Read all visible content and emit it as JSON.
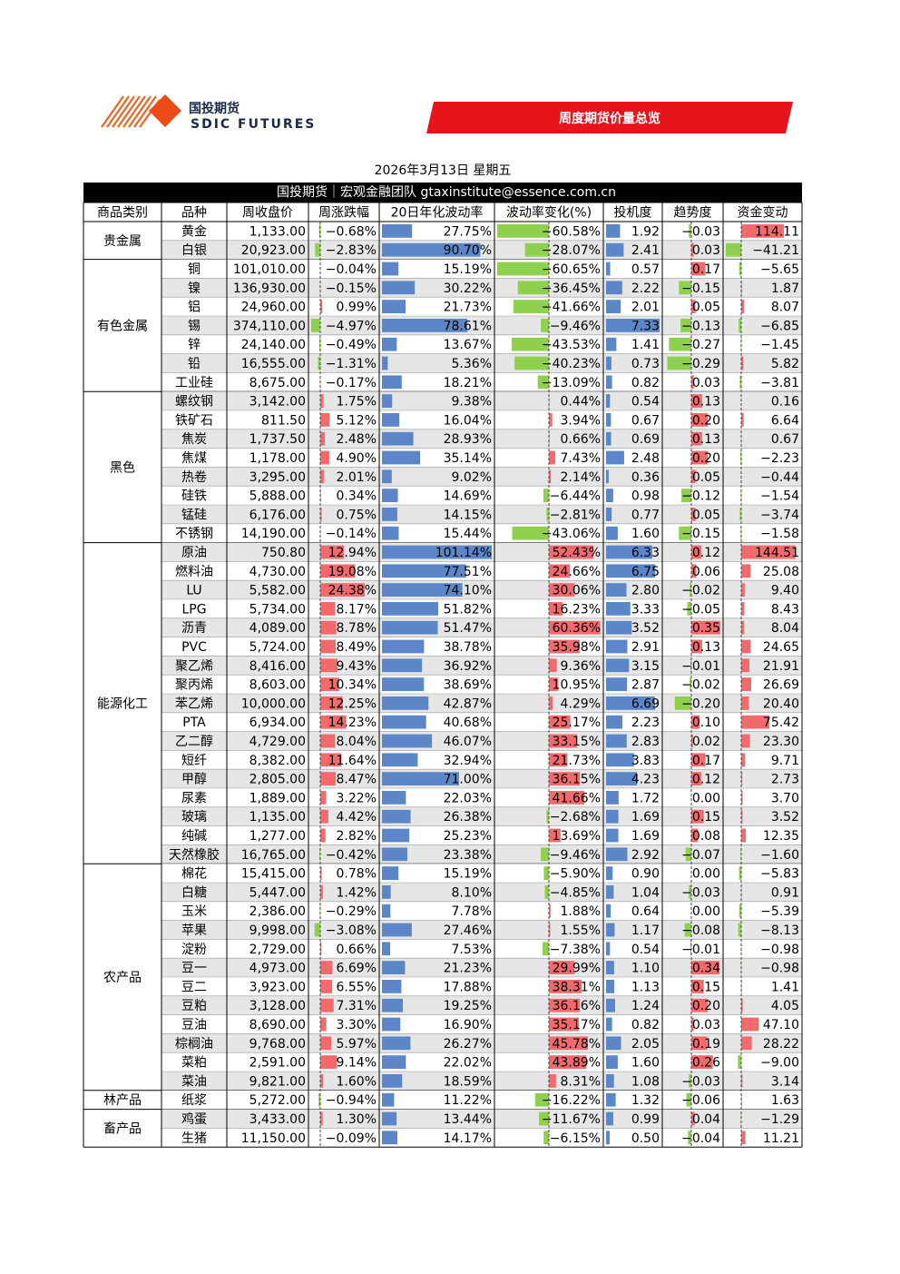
{
  "header": {
    "logo_cn": "国投期货",
    "logo_en": "SDIC FUTURES",
    "banner": "周度期货价量总览"
  },
  "date": "2026年3月13日 星期五",
  "team": "国投期货｜宏观金融团队 gtaxinstitute@essence.com.cn",
  "table": {
    "columns": [
      "商品类别",
      "品种",
      "周收盘价",
      "周涨跌幅",
      "20日年化波动率",
      "波动率变化(%)",
      "投机度",
      "趋势度",
      "资金变动"
    ],
    "groups": [
      {
        "name": "贵金属",
        "rows": [
          [
            "黄金",
            "1,133.00",
            "−0.68%",
            "27.75%",
            "−60.58%",
            "1.92",
            "−0.03",
            "114.11"
          ],
          [
            "白银",
            "20,923.00",
            "−2.83%",
            "90.70%",
            "−28.07%",
            "2.41",
            "0.03",
            "−41.21"
          ]
        ]
      },
      {
        "name": "有色金属",
        "rows": [
          [
            "铜",
            "101,010.00",
            "−0.04%",
            "15.19%",
            "−60.65%",
            "0.57",
            "0.17",
            "−5.65"
          ],
          [
            "镍",
            "136,930.00",
            "−0.15%",
            "30.22%",
            "−36.45%",
            "2.22",
            "−0.15",
            "1.87"
          ],
          [
            "铝",
            "24,960.00",
            "0.99%",
            "21.73%",
            "−41.66%",
            "2.01",
            "0.05",
            "8.07"
          ],
          [
            "锡",
            "374,110.00",
            "−4.97%",
            "78.61%",
            "−9.46%",
            "7.33",
            "−0.13",
            "−6.85"
          ],
          [
            "锌",
            "24,140.00",
            "−0.49%",
            "13.67%",
            "−43.53%",
            "1.41",
            "−0.27",
            "−1.45"
          ],
          [
            "铅",
            "16,555.00",
            "−1.31%",
            "5.36%",
            "−40.23%",
            "0.73",
            "−0.29",
            "5.82"
          ],
          [
            "工业硅",
            "8,675.00",
            "−0.17%",
            "18.21%",
            "−13.09%",
            "0.82",
            "0.03",
            "−3.81"
          ]
        ]
      },
      {
        "name": "黑色",
        "rows": [
          [
            "螺纹钢",
            "3,142.00",
            "1.75%",
            "9.38%",
            "0.44%",
            "0.54",
            "0.13",
            "0.16"
          ],
          [
            "铁矿石",
            "811.50",
            "5.12%",
            "16.04%",
            "3.94%",
            "0.67",
            "0.20",
            "6.64"
          ],
          [
            "焦炭",
            "1,737.50",
            "2.48%",
            "28.93%",
            "0.66%",
            "0.69",
            "0.13",
            "0.67"
          ],
          [
            "焦煤",
            "1,178.00",
            "4.90%",
            "35.14%",
            "7.43%",
            "2.48",
            "0.20",
            "−2.23"
          ],
          [
            "热卷",
            "3,295.00",
            "2.01%",
            "9.02%",
            "2.14%",
            "0.36",
            "0.05",
            "−0.44"
          ],
          [
            "硅铁",
            "5,888.00",
            "0.34%",
            "14.69%",
            "−6.44%",
            "0.98",
            "−0.12",
            "−1.54"
          ],
          [
            "锰硅",
            "6,176.00",
            "0.75%",
            "14.15%",
            "−2.81%",
            "0.77",
            "0.05",
            "−3.74"
          ],
          [
            "不锈钢",
            "14,190.00",
            "−0.14%",
            "15.44%",
            "−43.06%",
            "1.60",
            "−0.15",
            "−1.58"
          ]
        ]
      },
      {
        "name": "能源化工",
        "rows": [
          [
            "原油",
            "750.80",
            "12.94%",
            "101.14%",
            "52.43%",
            "6.33",
            "0.12",
            "144.51"
          ],
          [
            "燃料油",
            "4,730.00",
            "19.08%",
            "77.51%",
            "24.66%",
            "6.75",
            "0.06",
            "25.08"
          ],
          [
            "LU",
            "5,582.00",
            "24.38%",
            "74.10%",
            "30.06%",
            "2.80",
            "−0.02",
            "9.40"
          ],
          [
            "LPG",
            "5,734.00",
            "8.17%",
            "51.82%",
            "16.23%",
            "3.33",
            "−0.05",
            "8.43"
          ],
          [
            "沥青",
            "4,089.00",
            "8.78%",
            "51.47%",
            "60.36%",
            "3.52",
            "0.35",
            "8.04"
          ],
          [
            "PVC",
            "5,724.00",
            "8.49%",
            "38.78%",
            "35.98%",
            "2.91",
            "0.13",
            "24.65"
          ],
          [
            "聚乙烯",
            "8,416.00",
            "9.43%",
            "36.92%",
            "9.36%",
            "3.15",
            "−0.01",
            "21.91"
          ],
          [
            "聚丙烯",
            "8,603.00",
            "10.34%",
            "38.69%",
            "10.95%",
            "2.87",
            "−0.02",
            "26.69"
          ],
          [
            "苯乙烯",
            "10,000.00",
            "12.25%",
            "42.87%",
            "4.29%",
            "6.69",
            "−0.20",
            "20.40"
          ],
          [
            "PTA",
            "6,934.00",
            "14.23%",
            "40.68%",
            "25.17%",
            "2.23",
            "0.10",
            "75.42"
          ],
          [
            "乙二醇",
            "4,729.00",
            "8.04%",
            "46.07%",
            "33.15%",
            "2.83",
            "0.02",
            "23.30"
          ],
          [
            "短纤",
            "8,382.00",
            "11.64%",
            "32.94%",
            "21.73%",
            "3.83",
            "0.17",
            "9.71"
          ],
          [
            "甲醇",
            "2,805.00",
            "8.47%",
            "71.00%",
            "36.15%",
            "4.23",
            "0.12",
            "2.73"
          ],
          [
            "尿素",
            "1,889.00",
            "3.22%",
            "22.03%",
            "41.66%",
            "1.72",
            "0.00",
            "3.70"
          ],
          [
            "玻璃",
            "1,135.00",
            "4.42%",
            "26.38%",
            "−2.68%",
            "1.69",
            "0.15",
            "3.52"
          ],
          [
            "纯碱",
            "1,277.00",
            "2.82%",
            "25.23%",
            "13.69%",
            "1.69",
            "0.08",
            "12.35"
          ],
          [
            "天然橡胶",
            "16,765.00",
            "−0.42%",
            "23.38%",
            "−9.46%",
            "2.92",
            "−0.07",
            "−1.60"
          ]
        ]
      },
      {
        "name": "农产品",
        "rows": [
          [
            "棉花",
            "15,415.00",
            "0.78%",
            "15.19%",
            "−5.90%",
            "0.90",
            "0.00",
            "−5.83"
          ],
          [
            "白糖",
            "5,447.00",
            "1.42%",
            "8.10%",
            "−4.85%",
            "1.04",
            "−0.03",
            "0.91"
          ],
          [
            "玉米",
            "2,386.00",
            "−0.29%",
            "7.78%",
            "1.88%",
            "0.64",
            "0.00",
            "−5.39"
          ],
          [
            "苹果",
            "9,998.00",
            "−3.08%",
            "27.46%",
            "1.55%",
            "1.17",
            "−0.08",
            "−8.13"
          ],
          [
            "淀粉",
            "2,729.00",
            "0.66%",
            "7.53%",
            "−7.38%",
            "0.54",
            "−0.01",
            "−0.98"
          ],
          [
            "豆一",
            "4,973.00",
            "6.69%",
            "21.23%",
            "29.99%",
            "1.10",
            "0.34",
            "−0.98"
          ],
          [
            "豆二",
            "3,923.00",
            "6.55%",
            "17.88%",
            "38.31%",
            "1.13",
            "0.15",
            "1.41"
          ],
          [
            "豆粕",
            "3,128.00",
            "7.31%",
            "19.25%",
            "36.16%",
            "1.24",
            "0.20",
            "4.05"
          ],
          [
            "豆油",
            "8,690.00",
            "3.30%",
            "16.90%",
            "35.17%",
            "0.82",
            "0.03",
            "47.10"
          ],
          [
            "棕榈油",
            "9,768.00",
            "5.97%",
            "26.27%",
            "45.78%",
            "2.05",
            "0.19",
            "28.22"
          ],
          [
            "菜粕",
            "2,591.00",
            "9.14%",
            "22.02%",
            "43.89%",
            "1.60",
            "0.26",
            "−9.00"
          ],
          [
            "菜油",
            "9,821.00",
            "1.60%",
            "18.59%",
            "8.31%",
            "1.08",
            "−0.03",
            "3.14"
          ]
        ]
      },
      {
        "name": "林产品",
        "rows": [
          [
            "纸浆",
            "5,272.00",
            "−0.94%",
            "11.22%",
            "−16.22%",
            "1.32",
            "−0.06",
            "1.63"
          ]
        ]
      },
      {
        "name": "畜产品",
        "rows": [
          [
            "鸡蛋",
            "3,433.00",
            "1.30%",
            "13.44%",
            "−11.67%",
            "0.99",
            "0.04",
            "−1.29"
          ],
          [
            "生猪",
            "11,150.00",
            "−0.09%",
            "14.17%",
            "−6.15%",
            "0.50",
            "−0.04",
            "11.21"
          ]
        ]
      }
    ]
  }
}
